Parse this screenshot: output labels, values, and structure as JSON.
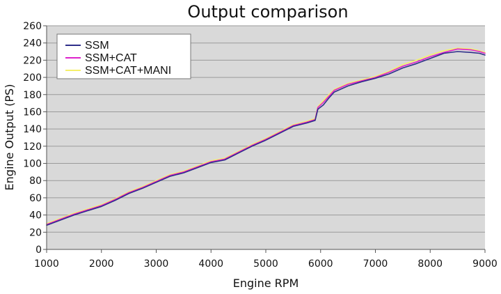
{
  "chart_data": {
    "type": "line",
    "title": "Output comparison",
    "xlabel": "Engine RPM",
    "ylabel": "Engine Output (PS)",
    "xlim": [
      1000,
      9000
    ],
    "ylim": [
      0,
      260
    ],
    "x_ticks": [
      1000,
      2000,
      3000,
      4000,
      5000,
      6000,
      7000,
      8000,
      9000
    ],
    "y_ticks": [
      0,
      20,
      40,
      60,
      80,
      100,
      120,
      140,
      160,
      180,
      200,
      220,
      240,
      260
    ],
    "grid": true,
    "legend_position": "top-left",
    "x": [
      1000,
      1250,
      1500,
      1750,
      2000,
      2250,
      2500,
      2750,
      3000,
      3250,
      3500,
      3750,
      4000,
      4250,
      4500,
      4750,
      5000,
      5250,
      5500,
      5750,
      5900,
      5950,
      6050,
      6150,
      6250,
      6500,
      6750,
      7000,
      7250,
      7500,
      7750,
      8000,
      8250,
      8500,
      8750,
      8900,
      9000
    ],
    "series": [
      {
        "name": "SSM",
        "color": "#2e2e8a",
        "values": [
          28,
          34,
          40,
          45,
          50,
          57,
          65,
          71,
          78,
          85,
          89,
          95,
          101,
          104,
          112,
          120,
          127,
          135,
          143,
          147,
          150,
          163,
          168,
          176,
          183,
          190,
          195,
          199,
          204,
          211,
          216,
          222,
          228,
          230,
          229,
          228,
          226
        ]
      },
      {
        "name": "SSM+CAT",
        "color": "#dd22cc",
        "values": [
          29,
          35,
          41,
          46,
          51,
          58,
          66,
          72,
          79,
          86,
          90,
          96,
          102,
          105,
          113,
          121,
          128,
          136,
          144,
          148,
          151,
          165,
          171,
          178,
          185,
          192,
          196,
          200,
          206,
          213,
          218,
          224,
          229,
          233,
          232,
          230,
          228
        ]
      },
      {
        "name": "SSM+CAT+MANI",
        "color": "#f5f06a",
        "values": [
          30,
          36,
          42,
          47,
          52,
          59,
          67,
          73,
          80,
          87,
          91,
          97,
          103,
          106,
          114,
          122,
          129,
          137,
          145,
          149,
          152,
          166,
          173,
          180,
          186,
          193,
          197,
          201,
          207,
          215,
          220,
          226,
          231,
          234,
          233,
          231,
          229
        ]
      }
    ]
  }
}
